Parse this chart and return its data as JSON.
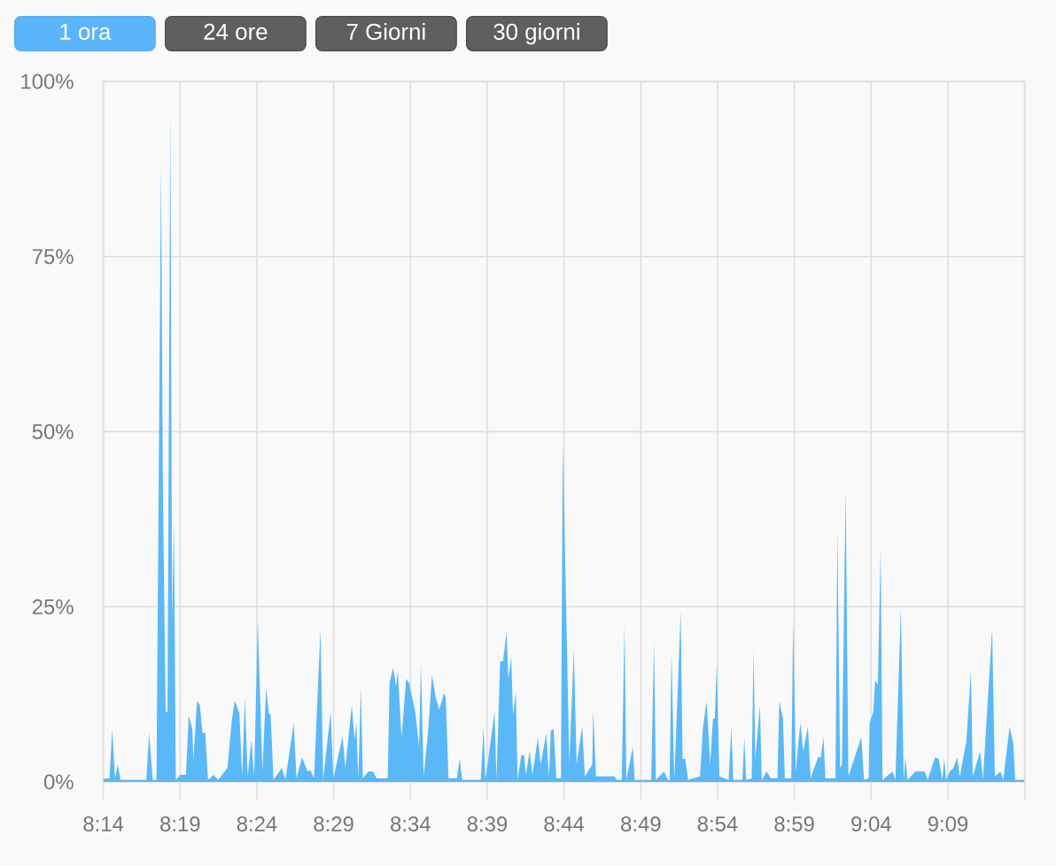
{
  "chart_data": {
    "type": "area",
    "annotations": [
      "1 ora",
      "24 ore",
      "7 Giorni",
      "30 giorni"
    ],
    "xlim": [
      8.2333,
      9.2333
    ],
    "xticks": [
      {
        "value": 8.2333,
        "label": "8:14"
      },
      {
        "value": 8.3167,
        "label": "8:19"
      },
      {
        "value": 8.4,
        "label": "8:24"
      },
      {
        "value": 8.4833,
        "label": "8:29"
      },
      {
        "value": 8.5667,
        "label": "8:34"
      },
      {
        "value": 8.65,
        "label": "8:39"
      },
      {
        "value": 8.7333,
        "label": "8:44"
      },
      {
        "value": 8.8167,
        "label": "8:49"
      },
      {
        "value": 8.9,
        "label": "8:54"
      },
      {
        "value": 8.9833,
        "label": "8:59"
      },
      {
        "value": 9.0667,
        "label": "9:04"
      },
      {
        "value": 9.15,
        "label": "9:09"
      },
      {
        "value": 9.2333,
        "label": null
      }
    ],
    "ylim": [
      0,
      100
    ],
    "yticks": [
      {
        "value": 0,
        "label": "0%"
      },
      {
        "value": 25,
        "label": "25%"
      },
      {
        "value": 50,
        "label": "50%"
      },
      {
        "value": 75,
        "label": "75%"
      },
      {
        "value": 100,
        "label": "100%"
      }
    ],
    "grid": true,
    "color": "#5ab8f7",
    "x": [
      8.2333,
      8.24,
      8.243,
      8.246,
      8.249,
      8.252,
      8.28,
      8.283,
      8.287,
      8.291,
      8.296,
      8.298,
      8.301,
      8.303,
      8.306,
      8.308,
      8.31,
      8.312,
      8.317,
      8.323,
      8.326,
      8.33,
      8.331,
      8.335,
      8.338,
      8.341,
      8.344,
      8.347,
      8.353,
      8.358,
      8.368,
      8.373,
      8.376,
      8.381,
      8.384,
      8.387,
      8.39,
      8.394,
      8.397,
      8.401,
      8.406,
      8.41,
      8.413,
      8.415,
      8.418,
      8.427,
      8.431,
      8.44,
      8.443,
      8.449,
      8.455,
      8.458,
      8.462,
      8.469,
      8.472,
      8.48,
      8.483,
      8.493,
      8.496,
      8.503,
      8.506,
      8.508,
      8.51,
      8.513,
      8.515,
      8.521,
      8.526,
      8.53,
      8.542,
      8.544,
      8.548,
      8.551,
      8.553,
      8.557,
      8.562,
      8.565,
      8.572,
      8.576,
      8.578,
      8.581,
      8.586,
      8.59,
      8.594,
      8.598,
      8.603,
      8.605,
      8.608,
      8.617,
      8.62,
      8.623,
      8.643,
      8.646,
      8.648,
      8.658,
      8.66,
      8.664,
      8.667,
      8.671,
      8.673,
      8.676,
      8.678,
      8.681,
      8.683,
      8.687,
      8.69,
      8.692,
      8.696,
      8.699,
      8.705,
      8.708,
      8.714,
      8.717,
      8.719,
      8.722,
      8.725,
      8.73,
      8.732,
      8.737,
      8.739,
      8.744,
      8.747,
      8.753,
      8.756,
      8.764,
      8.765,
      8.768,
      8.788,
      8.791,
      8.796,
      8.799,
      8.801,
      8.808,
      8.81,
      8.828,
      8.831,
      8.833,
      8.842,
      8.846,
      8.848,
      8.85,
      8.853,
      8.86,
      8.862,
      8.865,
      8.868,
      8.881,
      8.884,
      8.888,
      8.892,
      8.895,
      8.897,
      8.899,
      8.902,
      8.912,
      8.915,
      8.917,
      8.927,
      8.929,
      8.931,
      8.937,
      8.939,
      8.941,
      8.946,
      8.948,
      8.953,
      8.958,
      8.965,
      8.967,
      8.971,
      8.973,
      8.98,
      8.982,
      8.985,
      8.988,
      8.99,
      8.993,
      8.998,
      9.001,
      9.009,
      9.012,
      9.015,
      9.017,
      9.028,
      9.03,
      9.033,
      9.035,
      9.039,
      9.042,
      9.056,
      9.059,
      9.064,
      9.065,
      9.069,
      9.071,
      9.074,
      9.077,
      9.079,
      9.09,
      9.093,
      9.099,
      9.102,
      9.104,
      9.106,
      9.115,
      9.125,
      9.128,
      9.136,
      9.14,
      9.144,
      9.146,
      9.148,
      9.152,
      9.156,
      9.16,
      9.163,
      9.17,
      9.175,
      9.177,
      9.185,
      9.188,
      9.198,
      9.201,
      9.207,
      9.21,
      9.217,
      9.221,
      9.223,
      9.233
    ],
    "values": [
      0.4,
      0.5,
      7.5,
      0.5,
      2.5,
      0.3,
      0.3,
      7,
      0.3,
      0.3,
      88,
      42,
      10,
      10,
      95.7,
      23,
      37.4,
      0.3,
      1,
      1,
      9.5,
      7.5,
      3,
      11.5,
      11,
      7,
      7,
      0.3,
      1,
      0.3,
      2,
      9,
      11.6,
      9.8,
      0.8,
      11.9,
      0.8,
      6,
      0.8,
      22.9,
      1.5,
      13.4,
      9.8,
      9.5,
      0.3,
      2,
      0.3,
      8.4,
      0.5,
      3.5,
      1.5,
      1.7,
      0.5,
      21.8,
      0.3,
      10,
      0.5,
      6.5,
      2,
      10.9,
      6,
      8.4,
      0.5,
      13.4,
      0.5,
      1.5,
      1.5,
      0.5,
      0.5,
      14.2,
      16.3,
      13.6,
      15.8,
      6.3,
      14.7,
      14.2,
      10,
      5,
      16.8,
      0.8,
      7.5,
      15.3,
      12.1,
      10.3,
      12.7,
      12.1,
      0.5,
      0.5,
      3.3,
      0.3,
      0.3,
      7.9,
      0.3,
      10,
      0.3,
      17.2,
      17.2,
      21.4,
      14.7,
      17.9,
      9.5,
      12.8,
      0.3,
      3.8,
      3.8,
      1,
      4.4,
      1,
      6.3,
      2.5,
      6.9,
      0.8,
      7.3,
      7.6,
      0.5,
      0.5,
      48.3,
      16.3,
      2.5,
      18.9,
      2.5,
      7.9,
      0.8,
      2.5,
      10.3,
      0.8,
      0.8,
      0.3,
      0.3,
      22.4,
      0.3,
      5,
      0.3,
      0.3,
      20,
      0.3,
      1.5,
      0.3,
      0.3,
      18.4,
      0.3,
      24.3,
      3.3,
      3.3,
      0.3,
      0.8,
      7.5,
      11.5,
      2.5,
      9,
      9,
      16.6,
      0.8,
      0.3,
      7.9,
      0.3,
      0.3,
      6.4,
      0.3,
      0.5,
      18.9,
      3.3,
      10.9,
      0.3,
      1.5,
      0.5,
      0.5,
      11.5,
      9,
      0.5,
      0.5,
      22.9,
      1.5,
      6,
      8.4,
      4.4,
      7.9,
      0.5,
      3.5,
      3.5,
      6.4,
      0.5,
      0.5,
      35.8,
      2,
      2.5,
      41.8,
      0.8,
      6.4,
      0.3,
      0.5,
      8.4,
      10,
      14.5,
      13.9,
      33.4,
      0.3,
      1.5,
      0.3,
      24.9,
      0.3,
      3.5,
      0.3,
      1.5,
      1.5,
      0.3,
      3.5,
      3.3,
      0.3,
      3.3,
      0.3,
      1.5,
      2,
      3.5,
      0.8,
      5.8,
      15.9,
      0.8,
      4.4,
      0.3,
      21.8,
      0.8,
      1.5,
      0.3,
      7.9,
      5.5,
      0.3,
      0.3
    ]
  }
}
